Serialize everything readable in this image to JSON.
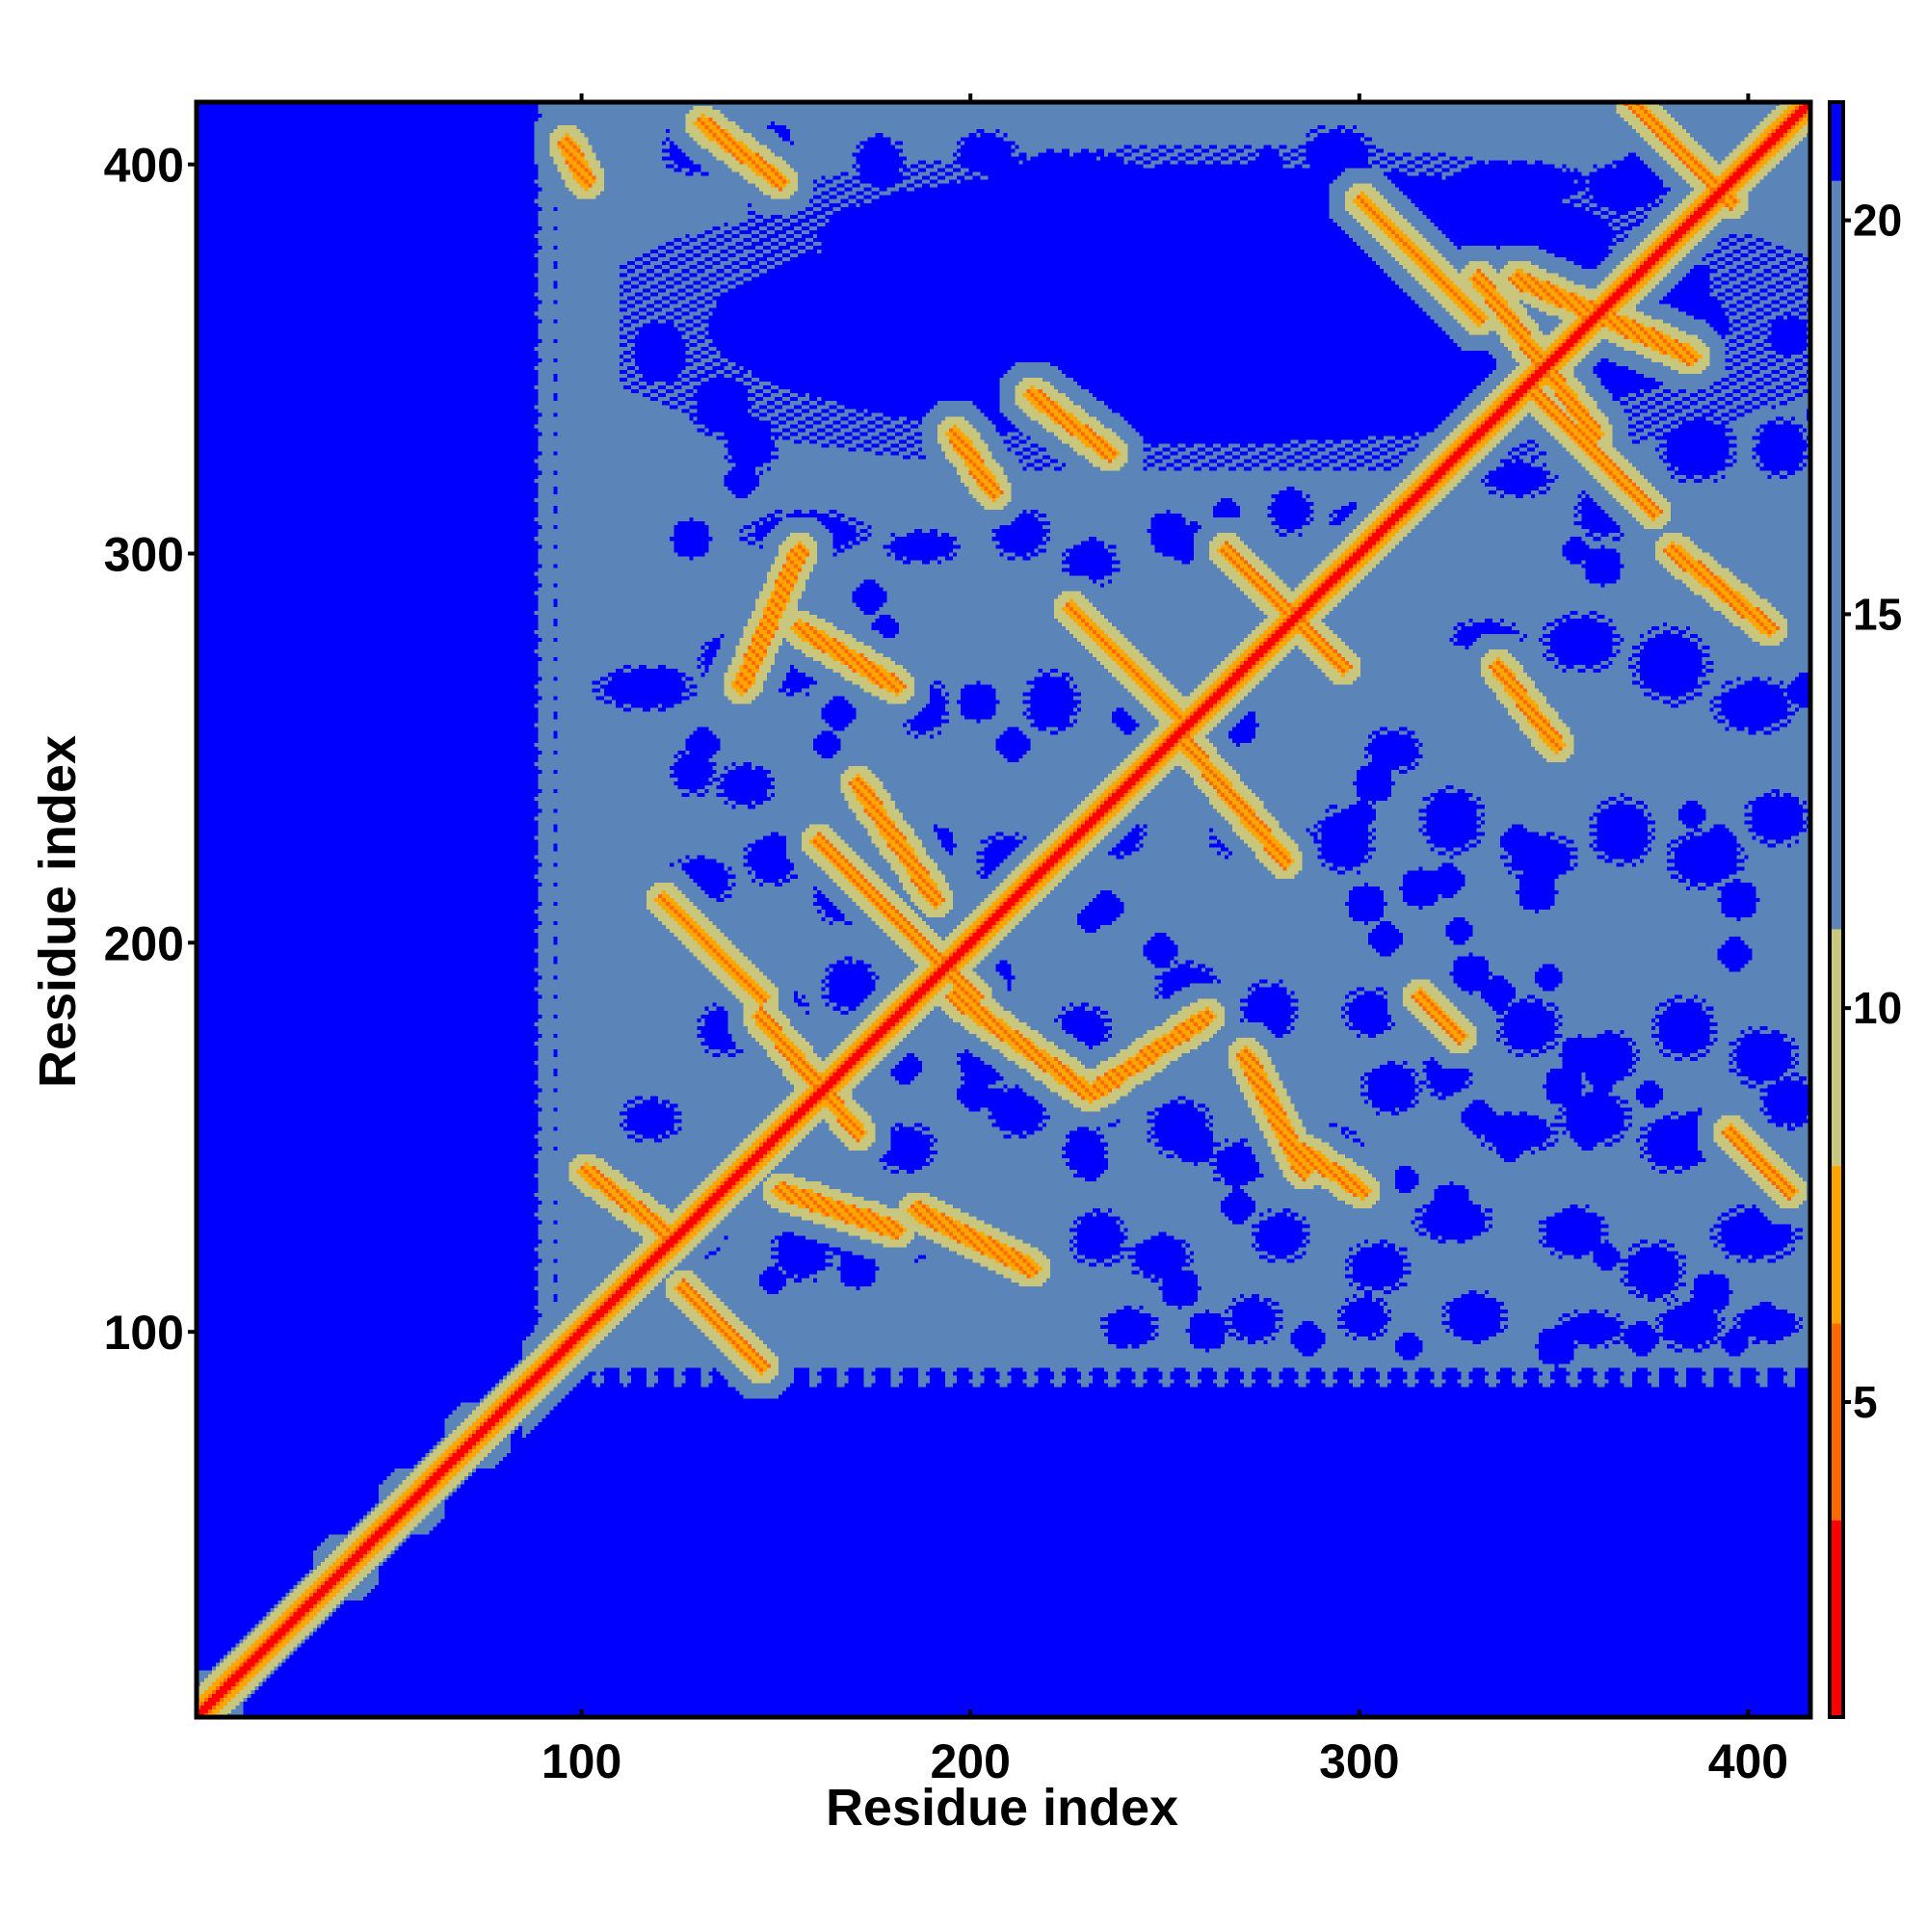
{
  "chart_data": {
    "type": "heatmap",
    "title": "",
    "xlabel": "Residue index",
    "ylabel": "Residue index",
    "xlim": [
      1,
      416
    ],
    "ylim": [
      1,
      416
    ],
    "x_ticks": [
      100,
      200,
      300,
      400
    ],
    "y_ticks": [
      100,
      200,
      300,
      400
    ],
    "x_tick_labels": [
      "100",
      "200",
      "300",
      "400"
    ],
    "y_tick_labels": [
      "100",
      "200",
      "300",
      "400"
    ],
    "colorbar": {
      "range": [
        1,
        21.5
      ],
      "ticks": [
        5,
        10,
        15,
        20
      ],
      "tick_labels": [
        "5",
        "10",
        "15",
        "20"
      ],
      "colors": [
        {
          "from": 1,
          "to": 3.5,
          "color": "#ff0000"
        },
        {
          "from": 3.5,
          "to": 6,
          "color": "#ff6a00"
        },
        {
          "from": 6,
          "to": 8,
          "color": "#ffa500"
        },
        {
          "from": 8,
          "to": 11,
          "color": "#c9c77e"
        },
        {
          "from": 11,
          "to": 20.5,
          "color": "#5b84b8"
        },
        {
          "from": 20.5,
          "to": 21.5,
          "color": "#0000ff"
        }
      ]
    },
    "matrix_description_values": {
      "background_value": 21,
      "diagonal_value": 2,
      "fill_value": 18
    },
    "valid_region": {
      "lower_left_block_end": 92,
      "residue_count": 416
    },
    "diagonal_blobs": [
      {
        "center": 72,
        "value": 12
      },
      {
        "center": 55,
        "value": 12
      },
      {
        "center": 38,
        "value": 12
      },
      {
        "center": 3,
        "value": 12
      }
    ],
    "contact_bands": [
      {
        "from": [
          140,
          265
        ],
        "to": [
          155,
          300
        ],
        "value": 7
      },
      {
        "from": [
          155,
          280
        ],
        "to": [
          180,
          265
        ],
        "value": 7
      },
      {
        "from": [
          225,
          285
        ],
        "to": [
          255,
          255
        ],
        "value": 7
      },
      {
        "from": [
          265,
          300
        ],
        "to": [
          295,
          270
        ],
        "value": 7
      },
      {
        "from": [
          255,
          250
        ],
        "to": [
          280,
          220
        ],
        "value": 7
      },
      {
        "from": [
          160,
          225
        ],
        "to": [
          200,
          185
        ],
        "value": 7
      },
      {
        "from": [
          120,
          210
        ],
        "to": [
          145,
          185
        ],
        "value": 7
      },
      {
        "from": [
          145,
          180
        ],
        "to": [
          170,
          150
        ],
        "value": 7
      },
      {
        "from": [
          170,
          240
        ],
        "to": [
          190,
          210
        ],
        "value": 7
      },
      {
        "from": [
          195,
          185
        ],
        "to": [
          230,
          160
        ],
        "value": 7
      },
      {
        "from": [
          230,
          160
        ],
        "to": [
          260,
          180
        ],
        "value": 7
      },
      {
        "from": [
          185,
          130
        ],
        "to": [
          215,
          115
        ],
        "value": 7
      },
      {
        "from": [
          150,
          135
        ],
        "to": [
          180,
          125
        ],
        "value": 7
      },
      {
        "from": [
          125,
          110
        ],
        "to": [
          145,
          90
        ],
        "value": 7
      },
      {
        "from": [
          100,
          140
        ],
        "to": [
          120,
          125
        ],
        "value": 7
      },
      {
        "from": [
          270,
          170
        ],
        "to": [
          285,
          140
        ],
        "value": 7
      },
      {
        "from": [
          285,
          145
        ],
        "to": [
          300,
          135
        ],
        "value": 7
      },
      {
        "from": [
          300,
          390
        ],
        "to": [
          330,
          360
        ],
        "value": 7
      },
      {
        "from": [
          330,
          370
        ],
        "to": [
          360,
          330
        ],
        "value": 7
      },
      {
        "from": [
          345,
          340
        ],
        "to": [
          375,
          310
        ],
        "value": 7
      },
      {
        "from": [
          340,
          370
        ],
        "to": [
          385,
          350
        ],
        "value": 7
      },
      {
        "from": [
          370,
          415
        ],
        "to": [
          395,
          390
        ],
        "value": 7
      },
      {
        "from": [
          380,
          300
        ],
        "to": [
          405,
          280
        ],
        "value": 7
      },
      {
        "from": [
          395,
          150
        ],
        "to": [
          410,
          135
        ],
        "value": 7
      },
      {
        "from": [
          130,
          410
        ],
        "to": [
          150,
          395
        ],
        "value": 7
      },
      {
        "from": [
          95,
          405
        ],
        "to": [
          100,
          395
        ],
        "value": 7
      },
      {
        "from": [
          215,
          340
        ],
        "to": [
          235,
          325
        ],
        "value": 7
      },
      {
        "from": [
          335,
          270
        ],
        "to": [
          350,
          250
        ],
        "value": 7
      },
      {
        "from": [
          315,
          185
        ],
        "to": [
          325,
          175
        ],
        "value": 7
      },
      {
        "from": [
          195,
          330
        ],
        "to": [
          205,
          315
        ],
        "value": 7
      }
    ],
    "far_patches": [
      [
        120,
        265,
        6
      ],
      [
        130,
        250,
        5
      ],
      [
        162,
        250,
        4
      ],
      [
        165,
        258,
        5
      ],
      [
        143,
        397,
        4
      ],
      [
        148,
        405,
        6
      ],
      [
        205,
        190,
        6
      ],
      [
        205,
        206,
        5
      ],
      [
        230,
        205,
        4
      ],
      [
        234,
        208,
        5
      ],
      [
        248,
        197,
        5
      ],
      [
        250,
        305,
        6
      ],
      [
        258,
        302,
        5
      ],
      [
        265,
        310,
        4
      ],
      [
        272,
        333,
        4
      ],
      [
        272,
        395,
        5
      ],
      [
        276,
        400,
        4
      ],
      [
        285,
        378,
        6
      ],
      [
        292,
        365,
        5
      ],
      [
        300,
        232,
        4
      ],
      [
        303,
        240,
        6
      ],
      [
        315,
        213,
        6
      ],
      [
        322,
        215,
        5
      ],
      [
        340,
        225,
        5
      ],
      [
        345,
        212,
        6
      ],
      [
        355,
        300,
        4
      ],
      [
        362,
        296,
        6
      ],
      [
        370,
        398,
        5
      ],
      [
        380,
        375,
        4
      ],
      [
        385,
        369,
        6
      ],
      [
        385,
        232,
        4
      ],
      [
        392,
        225,
        5
      ],
      [
        396,
        196,
        5
      ],
      [
        397,
        210,
        6
      ],
      [
        406,
        399,
        4
      ],
      [
        410,
        355,
        6
      ],
      [
        414,
        264,
        5
      ],
      [
        418,
        335,
        4
      ],
      [
        180,
        175,
        6
      ],
      [
        182,
        167,
        5
      ],
      [
        200,
        160,
        5
      ],
      [
        206,
        158,
        4
      ],
      [
        230,
        142,
        5
      ],
      [
        235,
        155,
        4
      ],
      [
        257,
        147,
        6
      ],
      [
        268,
        131,
        5
      ],
      [
        311,
        138,
        4
      ],
      [
        323,
        132,
        6
      ],
      [
        330,
        154,
        5
      ],
      [
        338,
        146,
        4
      ],
      [
        352,
        162,
        6
      ],
      [
        358,
        150,
        5
      ],
      [
        363,
        118,
        4
      ],
      [
        375,
        112,
        5
      ],
      [
        390,
        109,
        6
      ],
      [
        404,
        103,
        4
      ],
      [
        248,
        118,
        5
      ],
      [
        253,
        110,
        6
      ],
      [
        213,
        121,
        5
      ],
      [
        218,
        114,
        4
      ],
      [
        165,
        123,
        5
      ],
      [
        170,
        115,
        6
      ],
      [
        148,
        112,
        4
      ],
      [
        201,
        261,
        6
      ],
      [
        210,
        250,
        5
      ],
      [
        183,
        231,
        4
      ],
      [
        190,
        224,
        6
      ],
      [
        173,
        288,
        5
      ],
      [
        177,
        280,
        4
      ],
      [
        127,
        303,
        6
      ],
      [
        140,
        318,
        5
      ],
      [
        147,
        289,
        4
      ],
      [
        240,
        257,
        5
      ],
      [
        245,
        246,
        4
      ],
      [
        268,
        255,
        6
      ],
      [
        272,
        231,
        5
      ],
      [
        285,
        225,
        4
      ],
      [
        301,
        209,
        6
      ],
      [
        306,
        200,
        5
      ],
      [
        325,
        202,
        4
      ],
      [
        328,
        191,
        6
      ],
      [
        335,
        186,
        5
      ],
      [
        348,
        190,
        4
      ],
      [
        356,
        170,
        6
      ],
      [
        362,
        165,
        5
      ],
      [
        374,
        160,
        4
      ],
      [
        387,
        151,
        6
      ],
      [
        402,
        138,
        5
      ],
      [
        238,
        98,
        4
      ],
      [
        260,
        99,
        6
      ],
      [
        286,
        97,
        5
      ],
      [
        312,
        95,
        4
      ],
      [
        350,
        95,
        6
      ],
      [
        372,
        97,
        5
      ],
      [
        396,
        96,
        4
      ]
    ],
    "spots": [
      [
        112,
        392,
        414,
        324,
        4
      ],
      [
        145,
        401,
        380,
        361,
        6
      ],
      [
        242,
        401,
        208,
        392,
        5
      ],
      [
        268,
        389,
        278,
        378,
        4
      ],
      [
        285,
        408,
        302,
        396,
        6
      ],
      [
        325,
        399,
        355,
        391,
        5
      ],
      [
        358,
        399,
        378,
        388,
        4
      ],
      [
        228,
        376,
        258,
        368,
        6
      ],
      [
        189,
        372,
        206,
        361,
        5
      ],
      [
        112,
        359,
        126,
        343,
        4
      ],
      [
        128,
        345,
        142,
        330,
        6
      ],
      [
        137,
        333,
        148,
        321,
        5
      ],
      [
        142,
        309,
        171,
        300,
        4
      ],
      [
        178,
        304,
        195,
        298,
        6
      ],
      [
        206,
        310,
        218,
        299,
        5
      ],
      [
        224,
        302,
        236,
        292,
        4
      ],
      [
        248,
        306,
        262,
        298,
        6
      ],
      [
        277,
        315,
        286,
        305,
        5
      ],
      [
        293,
        311,
        305,
        304,
        4
      ],
      [
        312,
        318,
        321,
        310,
        6
      ],
      [
        332,
        322,
        348,
        315,
        5
      ],
      [
        356,
        316,
        369,
        304,
        4
      ],
      [
        378,
        334,
        395,
        319,
        6
      ],
      [
        402,
        333,
        414,
        320,
        5
      ],
      [
        104,
        269,
        126,
        260,
        4
      ],
      [
        130,
        277,
        144,
        267,
        6
      ],
      [
        147,
        275,
        160,
        264,
        5
      ],
      [
        123,
        248,
        132,
        238,
        4
      ],
      [
        135,
        244,
        147,
        235,
        6
      ],
      [
        182,
        266,
        192,
        253,
        5
      ],
      [
        214,
        268,
        226,
        254,
        4
      ],
      [
        265,
        276,
        272,
        264,
        6
      ],
      [
        302,
        253,
        314,
        244,
        5
      ],
      [
        324,
        281,
        340,
        275,
        4
      ],
      [
        348,
        283,
        365,
        270,
        6
      ],
      [
        371,
        279,
        388,
        262,
        5
      ],
      [
        392,
        266,
        410,
        254,
        4
      ],
      [
        122,
        220,
        137,
        210,
        6
      ],
      [
        142,
        226,
        154,
        215,
        5
      ],
      [
        160,
        217,
        171,
        205,
        4
      ],
      [
        175,
        219,
        186,
        210,
        6
      ],
      [
        202,
        226,
        214,
        214,
        5
      ],
      [
        230,
        233,
        243,
        222,
        4
      ],
      [
        262,
        231,
        275,
        222,
        6
      ],
      [
        289,
        233,
        302,
        218,
        5
      ],
      [
        316,
        238,
        330,
        223,
        4
      ],
      [
        338,
        226,
        354,
        216,
        6
      ],
      [
        360,
        235,
        374,
        220,
        5
      ],
      [
        380,
        227,
        397,
        214,
        4
      ],
      [
        400,
        237,
        414,
        225,
        6
      ],
      [
        130,
        182,
        141,
        171,
        5
      ],
      [
        142,
        187,
        156,
        176,
        4
      ],
      [
        162,
        194,
        174,
        182,
        6
      ],
      [
        197,
        173,
        207,
        163,
        5
      ],
      [
        222,
        182,
        234,
        170,
        4
      ],
      [
        248,
        193,
        262,
        181,
        6
      ],
      [
        270,
        188,
        282,
        175,
        5
      ],
      [
        296,
        186,
        308,
        176,
        4
      ],
      [
        317,
        171,
        327,
        160,
        6
      ],
      [
        336,
        184,
        350,
        171,
        5
      ],
      [
        357,
        175,
        370,
        164,
        4
      ],
      [
        376,
        184,
        390,
        170,
        6
      ],
      [
        396,
        176,
        411,
        163,
        5
      ],
      [
        110,
        158,
        123,
        149,
        4
      ],
      [
        176,
        151,
        189,
        141,
        6
      ],
      [
        205,
        161,
        218,
        150,
        5
      ],
      [
        224,
        151,
        233,
        140,
        4
      ],
      [
        246,
        158,
        260,
        145,
        6
      ],
      [
        262,
        147,
        274,
        137,
        5
      ],
      [
        282,
        151,
        298,
        142,
        4
      ],
      [
        301,
        167,
        314,
        156,
        6
      ],
      [
        331,
        154,
        349,
        146,
        5
      ],
      [
        352,
        160,
        368,
        148,
        4
      ],
      [
        373,
        154,
        389,
        141,
        6
      ],
      [
        404,
        164,
        416,
        152,
        5
      ],
      [
        115,
        129,
        134,
        118,
        4
      ],
      [
        149,
        125,
        162,
        113,
        6
      ],
      [
        178,
        129,
        190,
        118,
        5
      ],
      [
        203,
        120,
        216,
        112,
        4
      ],
      [
        226,
        129,
        238,
        117,
        6
      ],
      [
        241,
        123,
        255,
        113,
        5
      ],
      [
        273,
        129,
        285,
        118,
        4
      ],
      [
        297,
        121,
        311,
        110,
        6
      ],
      [
        315,
        132,
        332,
        123,
        5
      ],
      [
        347,
        130,
        362,
        119,
        4
      ],
      [
        368,
        121,
        382,
        108,
        6
      ],
      [
        392,
        130,
        411,
        118,
        5
      ],
      [
        234,
        104,
        246,
        96,
        4
      ],
      [
        266,
        107,
        278,
        97,
        6
      ],
      [
        295,
        107,
        306,
        98,
        5
      ],
      [
        322,
        108,
        336,
        97,
        4
      ],
      [
        351,
        103,
        367,
        96,
        6
      ],
      [
        377,
        106,
        392,
        95,
        5
      ],
      [
        397,
        104,
        412,
        97,
        4
      ],
      [
        121,
        409,
        135,
        398,
        6
      ],
      [
        170,
        406,
        181,
        395,
        5
      ],
      [
        196,
        407,
        210,
        397,
        4
      ]
    ]
  }
}
